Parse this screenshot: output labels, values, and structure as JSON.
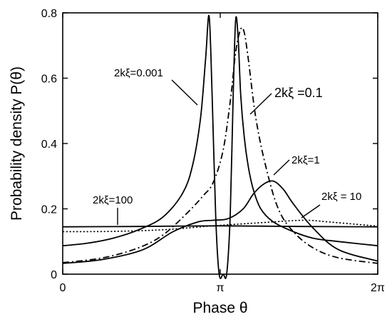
{
  "chart_data": {
    "type": "line",
    "xlabel": "Phase θ",
    "ylabel": "Probability density P(θ)",
    "xlim": [
      0,
      6.2832
    ],
    "ylim": [
      0,
      0.8
    ],
    "x_ticks": [
      {
        "value": 0,
        "label": "0"
      },
      {
        "value": 3.1416,
        "label": "π"
      },
      {
        "value": 6.2832,
        "label": "2π"
      }
    ],
    "y_ticks": [
      {
        "value": 0,
        "label": "0"
      },
      {
        "value": 0.2,
        "label": "0.2"
      },
      {
        "value": 0.4,
        "label": "0.4"
      },
      {
        "value": 0.6,
        "label": "0.6"
      },
      {
        "value": 0.8,
        "label": "0.8"
      }
    ],
    "grid": false,
    "series": [
      {
        "name": "2kξ=0.001",
        "style": "solid",
        "x": [
          0,
          0.5,
          1.0,
          1.5,
          2.0,
          2.4,
          2.6,
          2.75,
          2.85,
          2.92,
          2.98,
          3.05,
          3.12,
          3.2,
          3.27,
          3.34,
          3.4,
          3.45,
          3.5,
          3.55,
          3.62,
          3.7,
          3.8,
          3.95,
          4.2,
          4.6,
          5.0,
          5.5,
          6.2832
        ],
        "y": [
          0.087,
          0.095,
          0.11,
          0.135,
          0.175,
          0.25,
          0.34,
          0.48,
          0.66,
          0.79,
          0.55,
          0.18,
          0.0,
          0.0,
          0.0,
          0.18,
          0.55,
          0.78,
          0.72,
          0.55,
          0.42,
          0.33,
          0.26,
          0.2,
          0.16,
          0.13,
          0.11,
          0.1,
          0.087
        ]
      },
      {
        "name": "2kξ =0.1",
        "style": "dash-dot",
        "x": [
          0,
          0.8,
          1.5,
          2.0,
          2.5,
          2.8,
          3.0,
          3.2,
          3.35,
          3.45,
          3.55,
          3.62,
          3.7,
          3.85,
          4.05,
          4.3,
          4.6,
          5.0,
          5.5,
          6.2832
        ],
        "y": [
          0.035,
          0.05,
          0.08,
          0.12,
          0.19,
          0.24,
          0.28,
          0.38,
          0.54,
          0.68,
          0.75,
          0.74,
          0.66,
          0.48,
          0.33,
          0.2,
          0.13,
          0.08,
          0.05,
          0.033
        ]
      },
      {
        "name": "2kξ=1",
        "style": "solid",
        "x": [
          0,
          0.8,
          1.6,
          2.2,
          2.7,
          3.0,
          3.3,
          3.6,
          3.8,
          4.0,
          4.2,
          4.4,
          4.6,
          5.0,
          5.5,
          6.2832
        ],
        "y": [
          0.033,
          0.045,
          0.075,
          0.13,
          0.16,
          0.165,
          0.17,
          0.2,
          0.245,
          0.275,
          0.285,
          0.26,
          0.215,
          0.14,
          0.075,
          0.04
        ]
      },
      {
        "name": "2kξ = 10",
        "style": "dotted",
        "x": [
          0,
          1.0,
          2.0,
          3.0,
          4.0,
          4.8,
          5.3,
          6.2832
        ],
        "y": [
          0.13,
          0.131,
          0.136,
          0.148,
          0.158,
          0.165,
          0.16,
          0.147
        ]
      },
      {
        "name": "2kξ=100",
        "style": "solid",
        "x": [
          0,
          1.5,
          3.1416,
          4.7,
          6.2832
        ],
        "y": [
          0.145,
          0.146,
          0.148,
          0.146,
          0.145
        ]
      }
    ],
    "annotations": [
      {
        "text": "2kξ=0.001",
        "series": 0
      },
      {
        "text": "2kξ =0.1",
        "series": 1
      },
      {
        "text": "2kξ=1",
        "series": 2
      },
      {
        "text": "2kξ = 10",
        "series": 3
      },
      {
        "text": "2kξ=100",
        "series": 4
      }
    ]
  }
}
